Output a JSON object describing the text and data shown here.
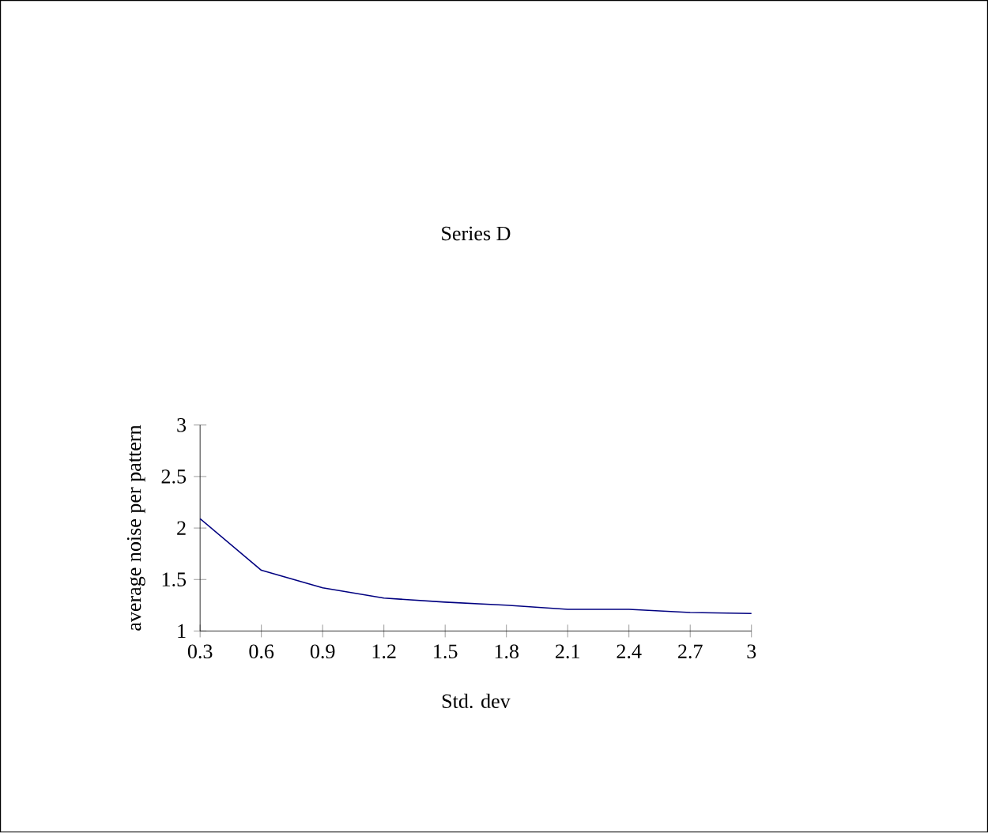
{
  "chart_data": {
    "type": "line",
    "title": "Series D",
    "xlabel": "Std. dev",
    "ylabel": "average noise per pattern",
    "x": [
      0.3,
      0.6,
      0.9,
      1.2,
      1.5,
      1.8,
      2.1,
      2.4,
      2.7,
      3
    ],
    "series": [
      {
        "color": "#000080",
        "values": [
          2.09,
          1.59,
          1.42,
          1.32,
          1.28,
          1.25,
          1.21,
          1.21,
          1.18,
          1.17
        ]
      }
    ],
    "xlim": [
      0.3,
      3
    ],
    "xticks": [
      0.3,
      0.6,
      0.9,
      1.2,
      1.5,
      1.8,
      2.1,
      2.4,
      2.7,
      3
    ],
    "ylim": [
      1,
      3
    ],
    "yticks": [
      1,
      1.5,
      2,
      2.5,
      3
    ],
    "grid": false,
    "marker": "none",
    "line_style": "solid"
  }
}
